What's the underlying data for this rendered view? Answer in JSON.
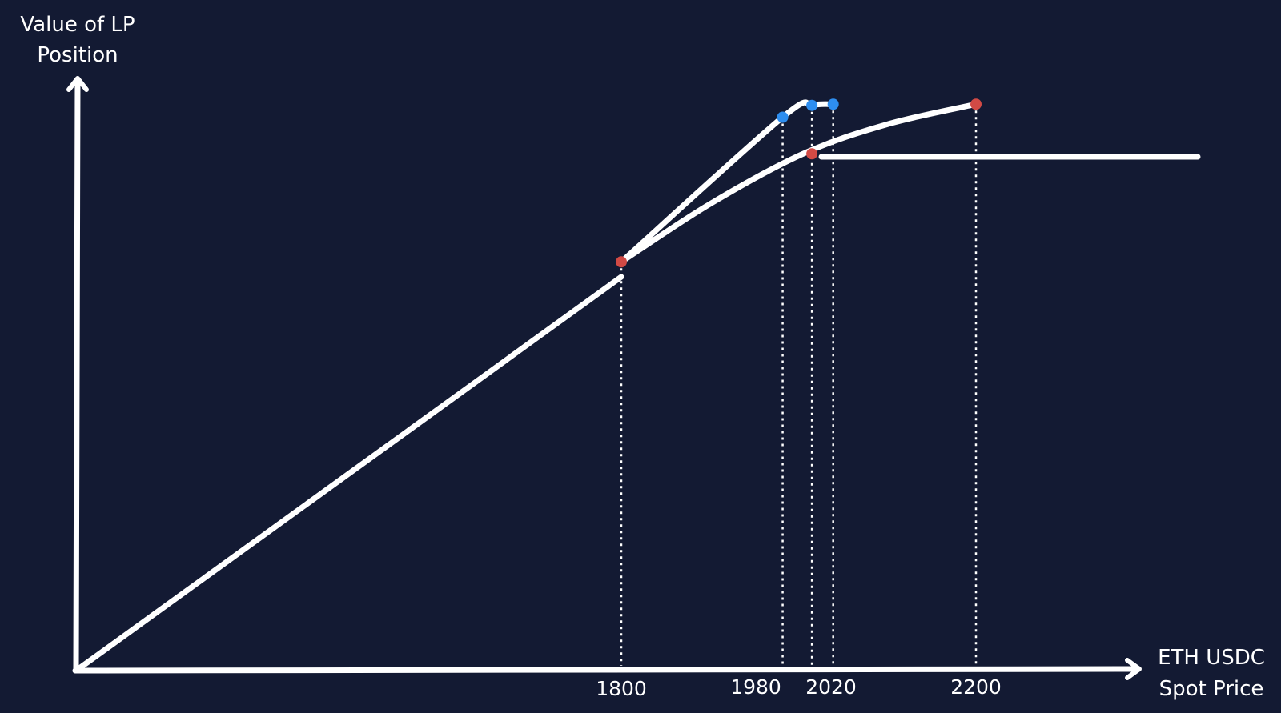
{
  "chart_data": {
    "type": "line",
    "title": "",
    "ylabel_lines": [
      "Value of LP",
      "Position"
    ],
    "xlabel_lines": [
      "ETH USDC",
      "Spot Price"
    ],
    "x_ticks": [
      "1800",
      "1980",
      "2020",
      "2200"
    ],
    "series": [
      {
        "color": "#ffffff",
        "points": [
          [
            1800,
            0.692
          ],
          [
            1982,
            0.937
          ],
          [
            2015,
            0.957
          ],
          [
            2039,
            0.959
          ]
        ]
      },
      {
        "color": "#ffffff",
        "points": [
          [
            1800,
            0.692
          ],
          [
            1900,
            0.79
          ],
          [
            2005,
            0.875
          ],
          [
            2100,
            0.925
          ],
          [
            2200,
            0.959
          ]
        ]
      }
    ],
    "markers": [
      {
        "x": 1800,
        "y": 0.692,
        "color": "#d24a45"
      },
      {
        "x": 1982,
        "y": 0.937,
        "color": "#2e8ef0"
      },
      {
        "x": 2015,
        "y": 0.957,
        "color": "#2e8ef0"
      },
      {
        "x": 2039,
        "y": 0.959,
        "color": "#2e8ef0"
      },
      {
        "x": 2015,
        "y": 0.875,
        "color": "#d24a45"
      },
      {
        "x": 2200,
        "y": 0.959,
        "color": "#d24a45"
      }
    ],
    "vlines": [
      1800,
      1982,
      2015,
      2039,
      2200
    ]
  }
}
